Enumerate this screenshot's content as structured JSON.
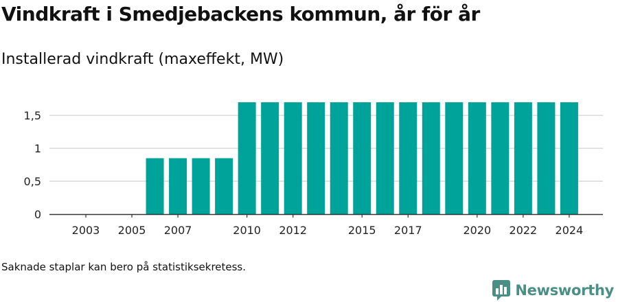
{
  "header": {
    "title": "Vindkraft i Smedjebackens kommun, år för år",
    "subtitle": "Installerad vindkraft (maxeffekt, MW)"
  },
  "footer": {
    "note": "Saknade staplar kan bero på statistiksekretess.",
    "brand": "Newsworthy"
  },
  "colors": {
    "bar": "#00a39a",
    "grid": "#d9d9d9",
    "axis": "#333333",
    "brand": "#4a8f86"
  },
  "chart_data": {
    "type": "bar",
    "title": "Installerad vindkraft (maxeffekt, MW)",
    "categories": [
      "2003",
      "2004",
      "2005",
      "2006",
      "2007",
      "2008",
      "2009",
      "2010",
      "2011",
      "2012",
      "2013",
      "2014",
      "2015",
      "2016",
      "2017",
      "2018",
      "2019",
      "2020",
      "2021",
      "2022",
      "2023",
      "2024"
    ],
    "values": [
      0,
      0,
      0,
      0.85,
      0.85,
      0.85,
      0.85,
      1.7,
      1.7,
      1.7,
      1.7,
      1.7,
      1.7,
      1.7,
      1.7,
      1.7,
      1.7,
      1.7,
      1.7,
      1.7,
      1.7,
      1.7
    ],
    "x_tick_labels": [
      "2003",
      "2005",
      "2007",
      "2010",
      "2012",
      "2015",
      "2017",
      "2020",
      "2022",
      "2024"
    ],
    "y_ticks": [
      0,
      0.5,
      1,
      1.5
    ],
    "y_tick_labels": [
      "0",
      "0,5",
      "1",
      "1,5"
    ],
    "ylim": [
      0,
      1.85
    ],
    "grid": true,
    "xlabel": "",
    "ylabel": ""
  }
}
